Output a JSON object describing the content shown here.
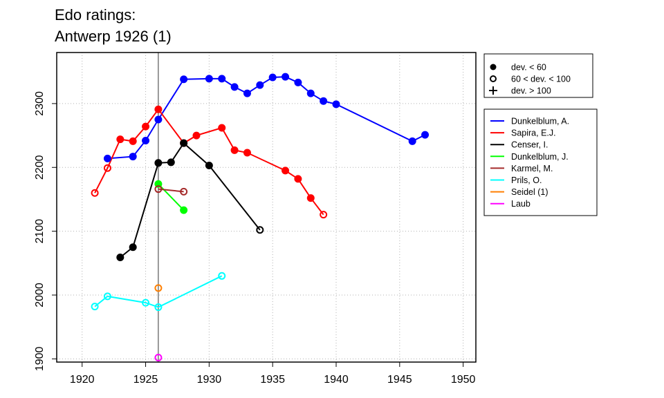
{
  "title": [
    "Edo ratings:",
    "Antwerp 1926 (1)"
  ],
  "chart_data": {
    "type": "line",
    "xlim": [
      1918,
      1951
    ],
    "ylim": [
      1895,
      2380
    ],
    "xticks": [
      1920,
      1925,
      1930,
      1935,
      1940,
      1945,
      1950
    ],
    "yticks": [
      1900,
      2000,
      2100,
      2200,
      2300
    ],
    "grid": true,
    "reference_x": 1926,
    "legend_placement": "right",
    "deviation_legend": [
      {
        "marker": "filled",
        "label": "dev. < 60"
      },
      {
        "marker": "open",
        "label": "60 < dev. < 100"
      },
      {
        "marker": "plus",
        "label": "dev. > 100"
      }
    ],
    "series": [
      {
        "name": "Dunkelblum, A.",
        "color": "#0000ff",
        "points": [
          {
            "x": 1922,
            "y": 2214,
            "m": "f"
          },
          {
            "x": 1924,
            "y": 2217,
            "m": "f"
          },
          {
            "x": 1925,
            "y": 2242,
            "m": "f"
          },
          {
            "x": 1926,
            "y": 2275,
            "m": "f"
          },
          {
            "x": 1928,
            "y": 2338,
            "m": "f"
          },
          {
            "x": 1930,
            "y": 2339,
            "m": "f"
          },
          {
            "x": 1931,
            "y": 2339,
            "m": "f"
          },
          {
            "x": 1932,
            "y": 2326,
            "m": "f"
          },
          {
            "x": 1933,
            "y": 2316,
            "m": "f"
          },
          {
            "x": 1934,
            "y": 2329,
            "m": "f"
          },
          {
            "x": 1935,
            "y": 2341,
            "m": "f"
          },
          {
            "x": 1936,
            "y": 2342,
            "m": "f"
          },
          {
            "x": 1937,
            "y": 2333,
            "m": "f"
          },
          {
            "x": 1938,
            "y": 2316,
            "m": "f"
          },
          {
            "x": 1939,
            "y": 2304,
            "m": "f"
          },
          {
            "x": 1940,
            "y": 2299,
            "m": "f"
          },
          {
            "x": 1946,
            "y": 2241,
            "m": "f"
          },
          {
            "x": 1947,
            "y": 2251,
            "m": "f"
          }
        ]
      },
      {
        "name": "Sapira, E.J.",
        "color": "#ff0000",
        "points": [
          {
            "x": 1921,
            "y": 2160,
            "m": "o"
          },
          {
            "x": 1922,
            "y": 2199,
            "m": "o"
          },
          {
            "x": 1923,
            "y": 2244,
            "m": "f"
          },
          {
            "x": 1924,
            "y": 2241,
            "m": "f"
          },
          {
            "x": 1925,
            "y": 2264,
            "m": "f"
          },
          {
            "x": 1926,
            "y": 2291,
            "m": "f"
          },
          {
            "x": 1928,
            "y": 2238,
            "m": "f"
          },
          {
            "x": 1929,
            "y": 2250,
            "m": "f"
          },
          {
            "x": 1931,
            "y": 2262,
            "m": "f"
          },
          {
            "x": 1932,
            "y": 2227,
            "m": "f"
          },
          {
            "x": 1933,
            "y": 2223,
            "m": "f"
          },
          {
            "x": 1936,
            "y": 2195,
            "m": "f"
          },
          {
            "x": 1937,
            "y": 2182,
            "m": "f"
          },
          {
            "x": 1938,
            "y": 2152,
            "m": "f"
          },
          {
            "x": 1939,
            "y": 2126,
            "m": "o"
          }
        ]
      },
      {
        "name": "Censer, I.",
        "color": "#000000",
        "points": [
          {
            "x": 1923,
            "y": 2059,
            "m": "f"
          },
          {
            "x": 1924,
            "y": 2075,
            "m": "f"
          },
          {
            "x": 1926,
            "y": 2207,
            "m": "f"
          },
          {
            "x": 1927,
            "y": 2208,
            "m": "f"
          },
          {
            "x": 1928,
            "y": 2238,
            "m": "f"
          },
          {
            "x": 1930,
            "y": 2203,
            "m": "f"
          },
          {
            "x": 1934,
            "y": 2102,
            "m": "o"
          }
        ]
      },
      {
        "name": "Dunkelblum, J.",
        "color": "#00ff00",
        "points": [
          {
            "x": 1926,
            "y": 2174,
            "m": "f"
          },
          {
            "x": 1928,
            "y": 2133,
            "m": "f"
          }
        ]
      },
      {
        "name": "Karmel, M.",
        "color": "#a52a2a",
        "points": [
          {
            "x": 1926,
            "y": 2166,
            "m": "o"
          },
          {
            "x": 1928,
            "y": 2162,
            "m": "o"
          }
        ]
      },
      {
        "name": "Prils, O.",
        "color": "#00ffff",
        "points": [
          {
            "x": 1921,
            "y": 1982,
            "m": "o"
          },
          {
            "x": 1922,
            "y": 1998,
            "m": "o"
          },
          {
            "x": 1925,
            "y": 1988,
            "m": "o"
          },
          {
            "x": 1926,
            "y": 1981,
            "m": "o"
          },
          {
            "x": 1931,
            "y": 2030,
            "m": "o"
          }
        ]
      },
      {
        "name": "Seidel (1)",
        "color": "#ff7f00",
        "points": [
          {
            "x": 1926,
            "y": 2011,
            "m": "o"
          }
        ]
      },
      {
        "name": "Laub",
        "color": "#ff00ff",
        "points": [
          {
            "x": 1926,
            "y": 1902,
            "m": "o"
          }
        ]
      }
    ]
  }
}
